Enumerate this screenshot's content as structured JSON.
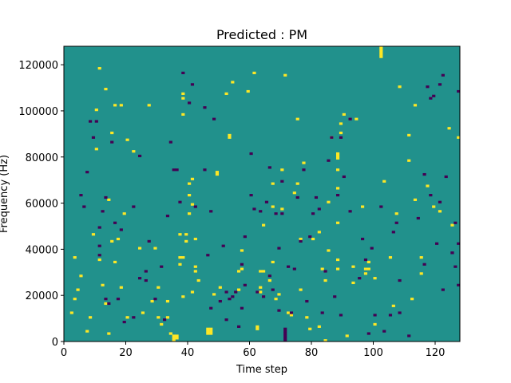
{
  "chart_data": {
    "type": "heatmap",
    "title": "Predicted : PM",
    "xlabel": "Time step",
    "ylabel": "Frequency (Hz)",
    "xlim": [
      0,
      128
    ],
    "ylim": [
      0,
      128000
    ],
    "x_ticks": [
      0,
      20,
      40,
      60,
      80,
      100,
      120
    ],
    "x_tick_labels": [
      "0",
      "20",
      "40",
      "60",
      "80",
      "100",
      "120"
    ],
    "y_ticks": [
      0,
      20000,
      40000,
      60000,
      80000,
      100000,
      120000
    ],
    "y_tick_labels": [
      "0",
      "20000",
      "40000",
      "60000",
      "80000",
      "100000",
      "120000"
    ],
    "grid": false,
    "legend": "none",
    "n_time_steps": 128,
    "n_freq_bins": 128,
    "colors": {
      "background": "#21918c",
      "high": "#fde725",
      "low": "#440154"
    },
    "bins_high": [
      [
        2,
        12
      ],
      [
        3,
        18
      ],
      [
        3,
        36
      ],
      [
        4,
        22
      ],
      [
        5,
        28
      ],
      [
        7,
        4
      ],
      [
        8,
        10
      ],
      [
        9,
        46
      ],
      [
        10,
        83
      ],
      [
        10,
        100
      ],
      [
        11,
        118
      ],
      [
        11,
        35
      ],
      [
        12,
        24
      ],
      [
        13,
        16
      ],
      [
        13,
        109
      ],
      [
        14,
        3
      ],
      [
        14,
        61
      ],
      [
        15,
        90
      ],
      [
        15,
        43
      ],
      [
        16,
        102
      ],
      [
        16,
        34
      ],
      [
        17,
        44
      ],
      [
        18,
        102
      ],
      [
        18,
        23
      ],
      [
        19,
        55
      ],
      [
        20,
        10
      ],
      [
        20,
        87
      ],
      [
        22,
        82
      ],
      [
        24,
        40
      ],
      [
        25,
        12
      ],
      [
        27,
        102
      ],
      [
        28,
        17
      ],
      [
        29,
        40
      ],
      [
        30,
        23
      ],
      [
        30,
        10
      ],
      [
        31,
        7
      ],
      [
        33,
        10
      ],
      [
        33,
        17
      ],
      [
        34,
        3
      ],
      [
        35,
        0
      ],
      [
        35,
        1
      ],
      [
        35,
        2
      ],
      [
        36,
        1
      ],
      [
        36,
        2
      ],
      [
        37,
        33
      ],
      [
        37,
        36
      ],
      [
        37,
        46
      ],
      [
        38,
        107
      ],
      [
        38,
        105
      ],
      [
        38,
        98
      ],
      [
        38,
        36
      ],
      [
        38,
        19
      ],
      [
        39,
        43
      ],
      [
        39,
        46
      ],
      [
        40,
        55
      ],
      [
        40,
        63
      ],
      [
        40,
        68
      ],
      [
        41,
        70
      ],
      [
        41,
        59
      ],
      [
        41,
        21
      ],
      [
        42,
        44
      ],
      [
        42,
        32
      ],
      [
        42,
        30
      ],
      [
        43,
        26
      ],
      [
        46,
        3
      ],
      [
        46,
        4
      ],
      [
        46,
        5
      ],
      [
        47,
        3
      ],
      [
        47,
        4
      ],
      [
        47,
        5
      ],
      [
        48,
        20
      ],
      [
        49,
        73
      ],
      [
        49,
        72
      ],
      [
        50,
        23
      ],
      [
        52,
        107
      ],
      [
        53,
        88
      ],
      [
        53,
        89
      ],
      [
        54,
        112
      ],
      [
        56,
        22
      ],
      [
        56,
        30
      ],
      [
        57,
        31
      ],
      [
        57,
        39
      ],
      [
        59,
        108
      ],
      [
        61,
        116
      ],
      [
        62,
        5
      ],
      [
        62,
        6
      ],
      [
        63,
        21
      ],
      [
        63,
        23
      ],
      [
        63,
        30
      ],
      [
        64,
        30
      ],
      [
        64,
        50
      ],
      [
        66,
        26
      ],
      [
        67,
        34
      ],
      [
        67,
        58
      ],
      [
        67,
        68
      ],
      [
        68,
        18
      ],
      [
        69,
        20
      ],
      [
        70,
        57
      ],
      [
        70,
        74
      ],
      [
        71,
        115
      ],
      [
        72,
        12
      ],
      [
        73,
        11
      ],
      [
        74,
        64
      ],
      [
        75,
        68
      ],
      [
        75,
        96
      ],
      [
        76,
        44
      ],
      [
        76,
        22
      ],
      [
        77,
        77
      ],
      [
        78,
        10
      ],
      [
        79,
        5
      ],
      [
        80,
        44
      ],
      [
        82,
        47
      ],
      [
        82,
        6
      ],
      [
        83,
        31
      ],
      [
        84,
        26
      ],
      [
        84,
        0
      ],
      [
        85,
        39
      ],
      [
        85,
        60
      ],
      [
        86,
        88
      ],
      [
        88,
        35
      ],
      [
        88,
        51
      ],
      [
        88,
        66
      ],
      [
        88,
        31
      ],
      [
        88,
        74
      ],
      [
        88,
        79
      ],
      [
        88,
        80
      ],
      [
        88,
        81
      ],
      [
        89,
        90
      ],
      [
        89,
        94
      ],
      [
        90,
        98
      ],
      [
        91,
        2
      ],
      [
        93,
        32
      ],
      [
        93,
        25
      ],
      [
        94,
        96
      ],
      [
        96,
        58
      ],
      [
        97,
        31
      ],
      [
        97,
        29
      ],
      [
        98,
        34
      ],
      [
        98,
        31
      ],
      [
        100,
        7
      ],
      [
        100,
        27
      ],
      [
        102,
        123
      ],
      [
        102,
        124
      ],
      [
        102,
        125
      ],
      [
        102,
        126
      ],
      [
        102,
        127
      ],
      [
        103,
        69
      ],
      [
        105,
        36
      ],
      [
        106,
        15
      ],
      [
        107,
        55
      ],
      [
        108,
        110
      ],
      [
        111,
        78
      ],
      [
        111,
        89
      ],
      [
        112,
        18
      ],
      [
        113,
        61
      ],
      [
        113,
        102
      ],
      [
        115,
        29
      ],
      [
        115,
        36
      ],
      [
        117,
        67
      ],
      [
        119,
        58
      ],
      [
        121,
        56
      ],
      [
        124,
        92
      ],
      [
        125,
        50
      ],
      [
        127,
        88
      ]
    ],
    "bins_low": [
      [
        5,
        63
      ],
      [
        6,
        58
      ],
      [
        7,
        73
      ],
      [
        8,
        95
      ],
      [
        9,
        88
      ],
      [
        10,
        95
      ],
      [
        11,
        49
      ],
      [
        11,
        41
      ],
      [
        11,
        37
      ],
      [
        12,
        56
      ],
      [
        13,
        18
      ],
      [
        13,
        62
      ],
      [
        14,
        16
      ],
      [
        15,
        86
      ],
      [
        16,
        51
      ],
      [
        17,
        18
      ],
      [
        18,
        48
      ],
      [
        19,
        8
      ],
      [
        22,
        10
      ],
      [
        22,
        58
      ],
      [
        24,
        27
      ],
      [
        24,
        80
      ],
      [
        26,
        26
      ],
      [
        26,
        30
      ],
      [
        27,
        43
      ],
      [
        29,
        18
      ],
      [
        31,
        32
      ],
      [
        32,
        9
      ],
      [
        33,
        54
      ],
      [
        34,
        86
      ],
      [
        35,
        74
      ],
      [
        36,
        74
      ],
      [
        37,
        60
      ],
      [
        38,
        116
      ],
      [
        40,
        103
      ],
      [
        41,
        111
      ],
      [
        42,
        58
      ],
      [
        45,
        101
      ],
      [
        45,
        74
      ],
      [
        46,
        37
      ],
      [
        47,
        14
      ],
      [
        47,
        56
      ],
      [
        48,
        96
      ],
      [
        50,
        17
      ],
      [
        51,
        41
      ],
      [
        52,
        9
      ],
      [
        52,
        21
      ],
      [
        53,
        18
      ],
      [
        54,
        19
      ],
      [
        55,
        21
      ],
      [
        56,
        6
      ],
      [
        57,
        14
      ],
      [
        57,
        33
      ],
      [
        58,
        24
      ],
      [
        58,
        45
      ],
      [
        60,
        63
      ],
      [
        60,
        81
      ],
      [
        61,
        57
      ],
      [
        62,
        21
      ],
      [
        63,
        56
      ],
      [
        64,
        19
      ],
      [
        65,
        60
      ],
      [
        66,
        28
      ],
      [
        66,
        75
      ],
      [
        67,
        22
      ],
      [
        68,
        55
      ],
      [
        69,
        40
      ],
      [
        69,
        13
      ],
      [
        70,
        55
      ],
      [
        70,
        69
      ],
      [
        71,
        0
      ],
      [
        71,
        1
      ],
      [
        71,
        2
      ],
      [
        71,
        3
      ],
      [
        71,
        4
      ],
      [
        71,
        5
      ],
      [
        72,
        32
      ],
      [
        73,
        12
      ],
      [
        74,
        31
      ],
      [
        75,
        62
      ],
      [
        76,
        43
      ],
      [
        77,
        74
      ],
      [
        78,
        17
      ],
      [
        79,
        45
      ],
      [
        80,
        55
      ],
      [
        81,
        62
      ],
      [
        82,
        57
      ],
      [
        83,
        12
      ],
      [
        84,
        30
      ],
      [
        85,
        78
      ],
      [
        86,
        88
      ],
      [
        87,
        19
      ],
      [
        88,
        63
      ],
      [
        89,
        11
      ],
      [
        89,
        88
      ],
      [
        90,
        71
      ],
      [
        92,
        56
      ],
      [
        92,
        96
      ],
      [
        95,
        27
      ],
      [
        96,
        44
      ],
      [
        97,
        35
      ],
      [
        98,
        3
      ],
      [
        99,
        40
      ],
      [
        100,
        11
      ],
      [
        102,
        58
      ],
      [
        103,
        4
      ],
      [
        105,
        11
      ],
      [
        106,
        47
      ],
      [
        107,
        51
      ],
      [
        108,
        12
      ],
      [
        108,
        26
      ],
      [
        111,
        2
      ],
      [
        114,
        53
      ],
      [
        116,
        72
      ],
      [
        116,
        33
      ],
      [
        117,
        110
      ],
      [
        118,
        63
      ],
      [
        118,
        105
      ],
      [
        119,
        106
      ],
      [
        120,
        42
      ],
      [
        121,
        60
      ],
      [
        121,
        111
      ],
      [
        122,
        22
      ],
      [
        122,
        115
      ],
      [
        123,
        71
      ],
      [
        125,
        38
      ],
      [
        125,
        38
      ],
      [
        126,
        32
      ],
      [
        126,
        51
      ],
      [
        127,
        24
      ],
      [
        127,
        42
      ],
      [
        127,
        108
      ]
    ]
  }
}
